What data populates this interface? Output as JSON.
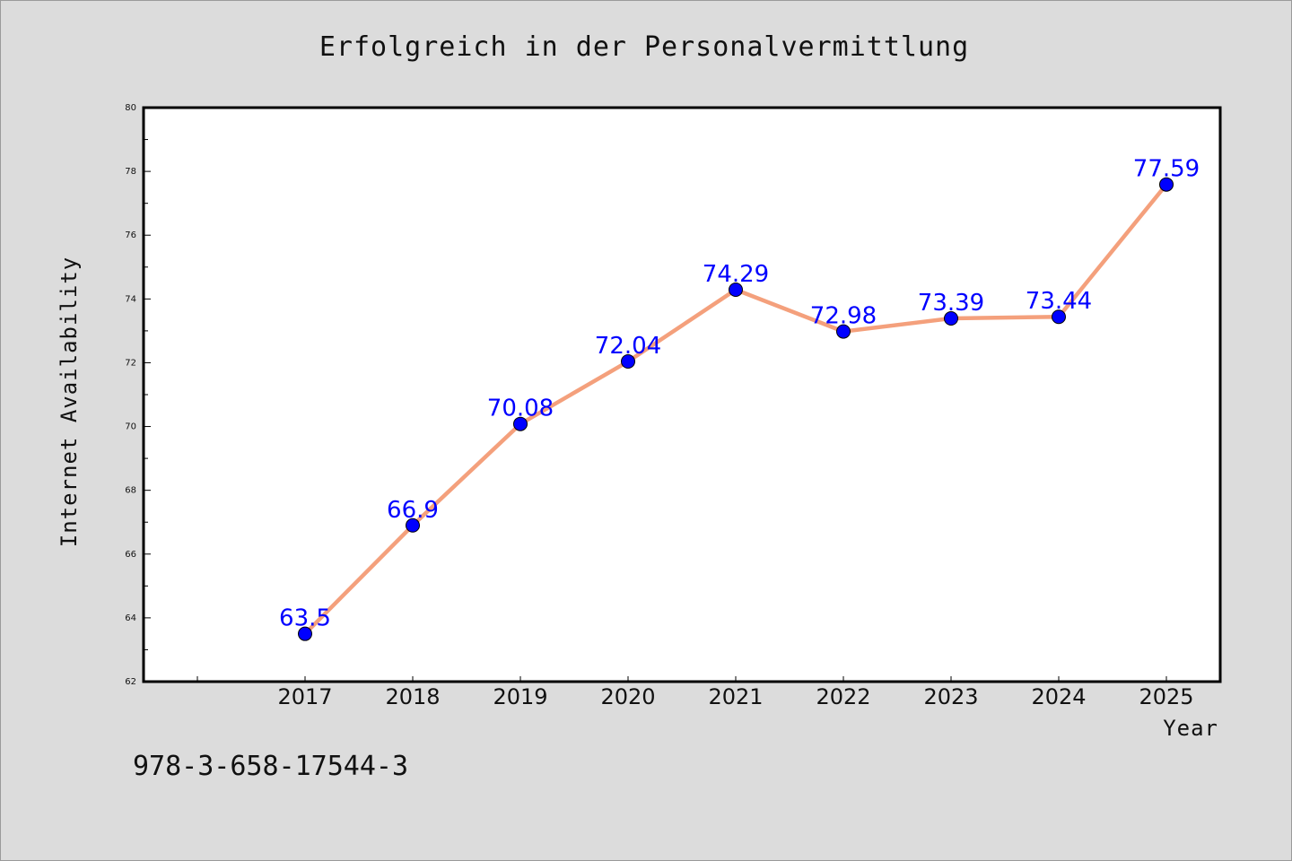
{
  "chart_data": {
    "type": "line",
    "title": "Erfolgreich in der Personalvermittlung",
    "xlabel": "Year",
    "ylabel": "Internet Availability",
    "categories": [
      "2017",
      "2018",
      "2019",
      "2020",
      "2021",
      "2022",
      "2023",
      "2024",
      "2025"
    ],
    "series": [
      {
        "values": [
          63.5,
          66.9,
          70.08,
          72.04,
          74.29,
          72.98,
          73.39,
          73.44,
          77.59
        ],
        "labels": [
          "63.5",
          "66.9",
          "70.08",
          "72.04",
          "74.29",
          "72.98",
          "73.39",
          "73.44",
          "77.59"
        ],
        "line_color": "#f4a07c",
        "marker_color": "#0000ff"
      }
    ],
    "ylim": [
      62,
      80
    ],
    "yticks": [
      62,
      64,
      66,
      68,
      70,
      72,
      74,
      76,
      78,
      80
    ],
    "ytick_labels": [
      "62",
      "64",
      "66",
      "68",
      "70",
      "72",
      "74",
      "76",
      "78",
      "80"
    ],
    "grid": false,
    "legend": "none",
    "label_color": "#0000ff"
  },
  "footer": {
    "isbn": "978-3-658-17544-3"
  },
  "colors": {
    "background": "#dcdcdc",
    "plot_background": "#ffffff",
    "line": "#f4a07c",
    "marker": "#0000ff",
    "data_label": "#0000ff"
  }
}
